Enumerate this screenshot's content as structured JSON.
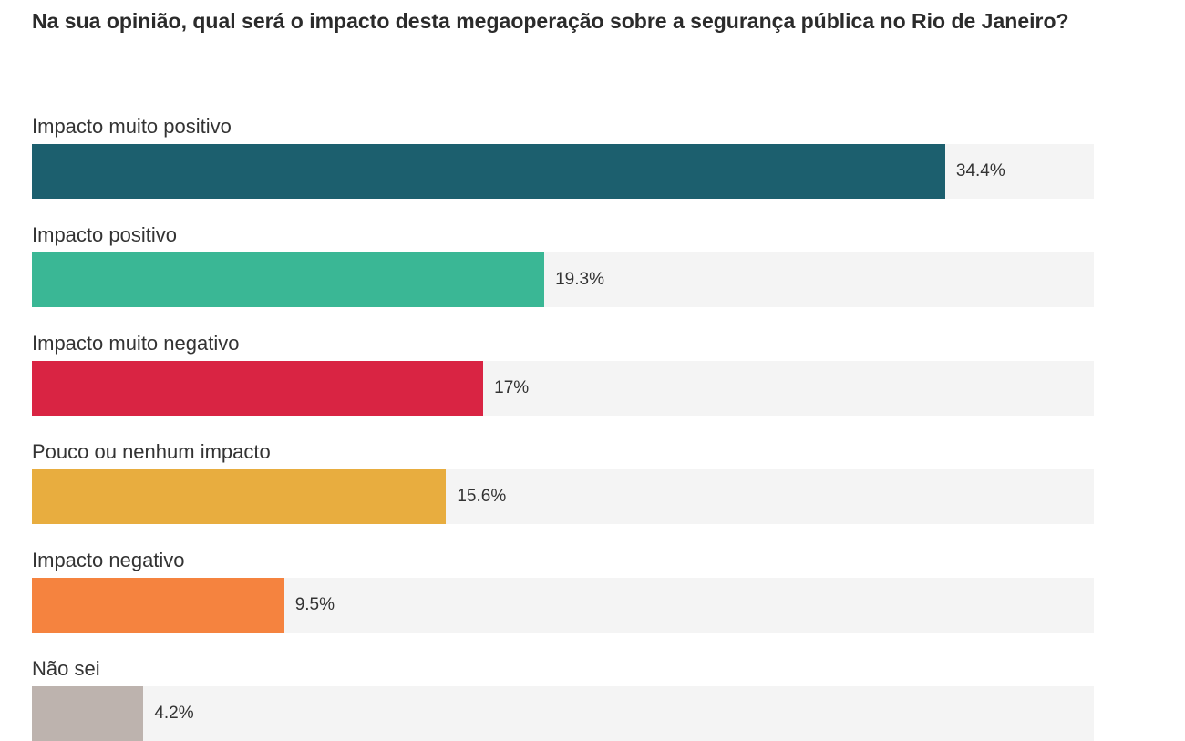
{
  "chart_data": {
    "type": "bar",
    "orientation": "horizontal",
    "title": "Na sua opinião, qual será o impacto desta megaoperação sobre a segurança pública no Rio de Janeiro?",
    "categories": [
      "Impacto muito positivo",
      "Impacto positivo",
      "Impacto muito negativo",
      "Pouco ou nenhum impacto",
      "Impacto negativo",
      "Não sei"
    ],
    "values": [
      34.4,
      19.3,
      17,
      15.6,
      9.5,
      4.2
    ],
    "value_labels": [
      "34.4%",
      "19.3%",
      "17%",
      "15.6%",
      "9.5%",
      "4.2%"
    ],
    "colors": [
      "#1c5f6e",
      "#3ab795",
      "#d92443",
      "#e8ad3f",
      "#f5833f",
      "#bdb3ae"
    ],
    "track_color": "#f4f4f4",
    "xlim": [
      0,
      40
    ],
    "grid": false,
    "legend": "none"
  }
}
